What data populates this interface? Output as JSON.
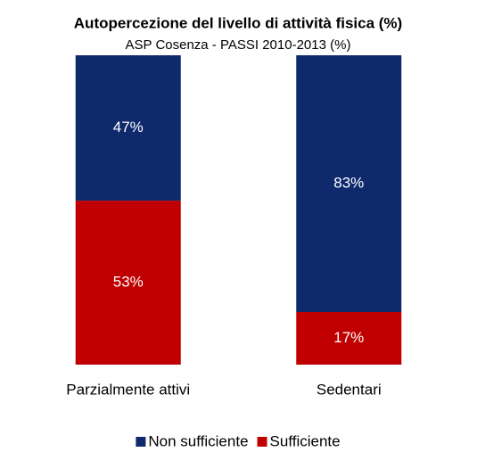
{
  "chart_data": {
    "type": "stacked_bar",
    "title": "Autopercezione del livello di attività fisica (%)",
    "subtitle": "ASP Cosenza - PASSI 2010-2013 (%)",
    "categories": [
      "Parzialmente attivi",
      "Sedentari"
    ],
    "series": [
      {
        "name": "Non sufficiente",
        "color": "#0e2a6c",
        "values": [
          47,
          83
        ],
        "value_labels": [
          "47%",
          "83%"
        ]
      },
      {
        "name": "Sufficiente",
        "color": "#c00000",
        "values": [
          53,
          17
        ],
        "value_labels": [
          "53%",
          "17%"
        ]
      }
    ],
    "ylim": [
      0,
      100
    ],
    "legend": "bottom"
  }
}
